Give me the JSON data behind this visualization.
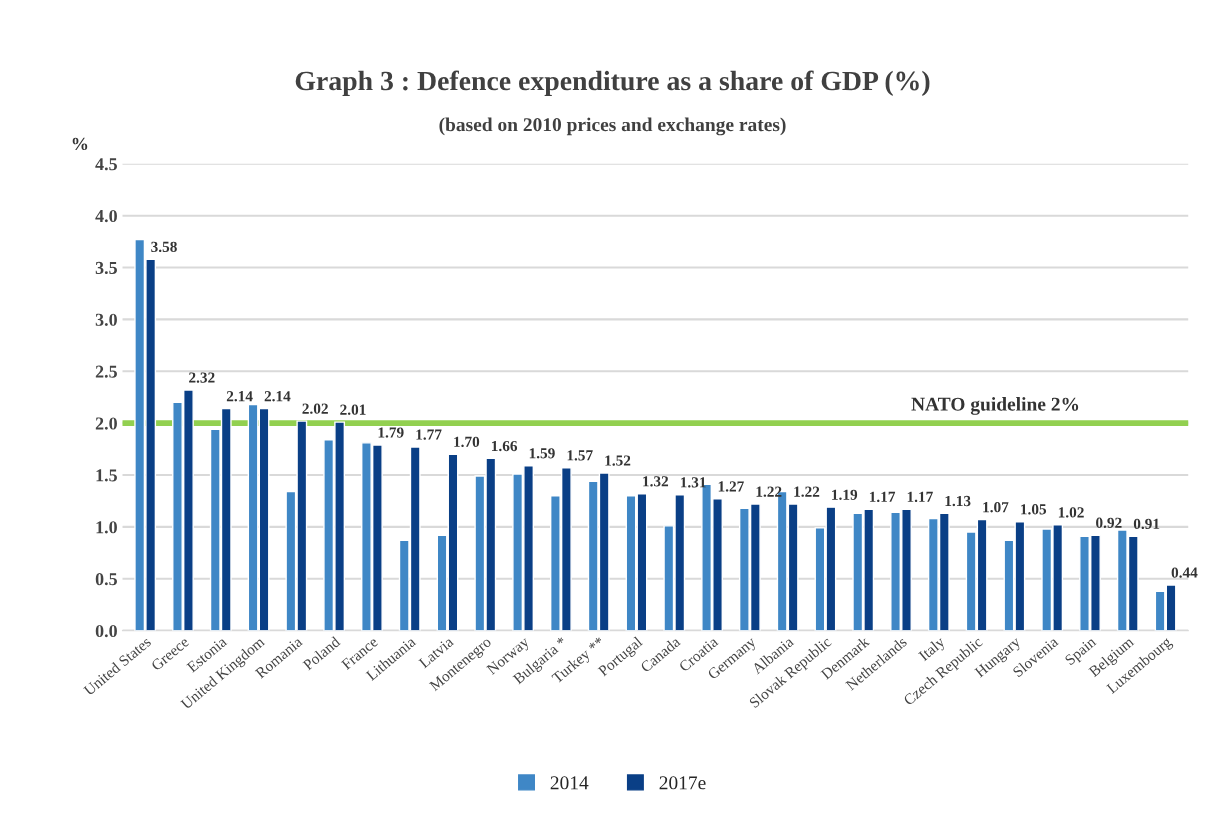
{
  "chart_data": {
    "type": "bar",
    "title": "Graph 3 : Defence expenditure as a share of GDP (%)",
    "subtitle": "(based on 2010 prices and exchange rates)",
    "ylabel": "%",
    "categories": [
      "United States",
      "Greece",
      "Estonia",
      "United Kingdom",
      "Romania",
      "Poland",
      "France",
      "Lithuania",
      "Latvia",
      "Montenegro",
      "Norway",
      "Bulgaria *",
      "Turkey **",
      "Portugal",
      "Canada",
      "Croatia",
      "Germany",
      "Albania",
      "Slovak Republic",
      "Denmark",
      "Netherlands",
      "Italy",
      "Czech Republic",
      "Hungary",
      "Slovenia",
      "Spain",
      "Belgium",
      "Luxembourg"
    ],
    "series": [
      {
        "name": "2014",
        "color": "#3f87c6",
        "values": [
          3.77,
          2.2,
          1.94,
          2.18,
          1.34,
          1.84,
          1.81,
          0.87,
          0.92,
          1.49,
          1.51,
          1.3,
          1.44,
          1.3,
          1.01,
          1.41,
          1.18,
          1.34,
          0.99,
          1.13,
          1.14,
          1.08,
          0.95,
          0.87,
          0.98,
          0.91,
          0.97,
          0.38
        ]
      },
      {
        "name": "2017e",
        "color": "#0a3f86",
        "values": [
          3.58,
          2.32,
          2.14,
          2.14,
          2.02,
          2.01,
          1.79,
          1.77,
          1.7,
          1.66,
          1.59,
          1.57,
          1.52,
          1.32,
          1.31,
          1.27,
          1.22,
          1.22,
          1.19,
          1.17,
          1.17,
          1.13,
          1.07,
          1.05,
          1.02,
          0.92,
          0.91,
          0.44
        ],
        "value_labels": [
          "3.58",
          "2.32",
          "2.14",
          "2.14",
          "2.02",
          "2.01",
          "1.79",
          "1.77",
          "1.70",
          "1.66",
          "1.59",
          "1.57",
          "1.52",
          "1.32",
          "1.31",
          "1.27",
          "1.22",
          "1.22",
          "1.19",
          "1.17",
          "1.17",
          "1.13",
          "1.07",
          "1.05",
          "1.02",
          "0.92",
          "0.91",
          "0.44"
        ]
      }
    ],
    "ylim": [
      0,
      4.5
    ],
    "yticks": [
      {
        "value": 0,
        "label": "0.0"
      },
      {
        "value": 0.5,
        "label": "0.5"
      },
      {
        "value": 1,
        "label": "1.0"
      },
      {
        "value": 1.5,
        "label": "1.5"
      },
      {
        "value": 2,
        "label": "2.0"
      },
      {
        "value": 2.5,
        "label": "2.5"
      },
      {
        "value": 3,
        "label": "3.0"
      },
      {
        "value": 3.5,
        "label": "3.5"
      },
      {
        "value": 4,
        "label": "4.0"
      },
      {
        "value": 4.5,
        "label": "4.5"
      }
    ],
    "grid": "y",
    "legend": "bottom",
    "ref_lines": [
      {
        "axis": "y",
        "value": 2,
        "label": "NATO guideline 2%",
        "color": "#92d050"
      }
    ]
  }
}
